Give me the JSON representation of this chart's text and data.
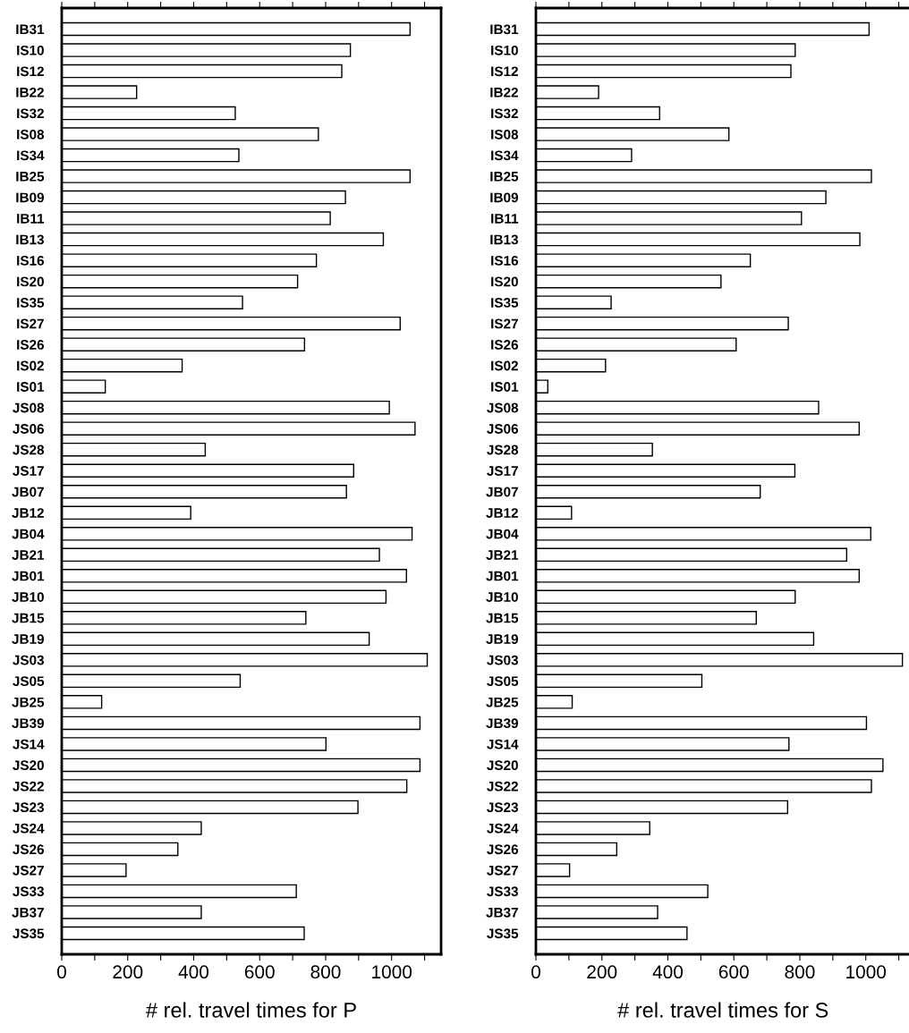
{
  "chart_data": [
    {
      "type": "bar",
      "orientation": "horizontal",
      "xlabel": "# rel. travel times for P",
      "categories": [
        "IB31",
        "IS10",
        "IS12",
        "IB22",
        "IS32",
        "IS08",
        "IS34",
        "IB25",
        "IB09",
        "IB11",
        "IB13",
        "IS16",
        "IS20",
        "IS35",
        "IS27",
        "IS26",
        "IS02",
        "IS01",
        "JS08",
        "JS06",
        "JS28",
        "JS17",
        "JB07",
        "JB12",
        "JB04",
        "JB21",
        "JB01",
        "JB10",
        "JB15",
        "JB19",
        "JS03",
        "JS05",
        "JB25",
        "JB39",
        "JS14",
        "JS20",
        "JS22",
        "JS23",
        "JS24",
        "JS26",
        "JS27",
        "JS33",
        "JB37",
        "JS35"
      ],
      "values": [
        1056,
        875,
        849,
        227,
        526,
        778,
        537,
        1056,
        860,
        814,
        975,
        772,
        715,
        548,
        1026,
        736,
        365,
        132,
        993,
        1071,
        435,
        885,
        863,
        391,
        1062,
        963,
        1045,
        983,
        740,
        932,
        1108,
        541,
        121,
        1086,
        801,
        1086,
        1046,
        898,
        423,
        352,
        195,
        711,
        423,
        735
      ],
      "color": "#ffffff",
      "xlim": [
        0,
        1150
      ],
      "xticks": [
        0,
        {
          "value": 100,
          "label": null
        },
        200,
        {
          "value": 300,
          "label": null
        },
        400,
        {
          "value": 500,
          "label": null
        },
        600,
        {
          "value": 700,
          "label": null
        },
        800,
        {
          "value": 900,
          "label": null
        },
        1000,
        {
          "value": 1100,
          "label": null
        }
      ],
      "grid": false,
      "legend": false
    },
    {
      "type": "bar",
      "orientation": "horizontal",
      "xlabel": "# rel. travel times for S",
      "categories": [
        "IB31",
        "IS10",
        "IS12",
        "IB22",
        "IS32",
        "IS08",
        "IS34",
        "IB25",
        "IB09",
        "IB11",
        "IB13",
        "IS16",
        "IS20",
        "IS35",
        "IS27",
        "IS26",
        "IS02",
        "IS01",
        "JS08",
        "JS06",
        "JS28",
        "JS17",
        "JB07",
        "JB12",
        "JB04",
        "JB21",
        "JB01",
        "JB10",
        "JB15",
        "JB19",
        "JS03",
        "JS05",
        "JB25",
        "JB39",
        "JS14",
        "JS20",
        "JS22",
        "JS23",
        "JS24",
        "JS26",
        "JS27",
        "JS33",
        "JB37",
        "JS35"
      ],
      "values": [
        1010,
        786,
        773,
        190,
        375,
        585,
        290,
        1017,
        879,
        805,
        982,
        650,
        561,
        228,
        765,
        607,
        211,
        36,
        857,
        980,
        353,
        785,
        680,
        108,
        1015,
        942,
        980,
        786,
        668,
        842,
        1111,
        503,
        110,
        1002,
        767,
        1052,
        1017,
        763,
        345,
        245,
        102,
        521,
        369,
        458
      ],
      "color": "#ffffff",
      "xlim": [
        0,
        1135
      ],
      "xticks": [
        0,
        {
          "value": 100,
          "label": null
        },
        200,
        {
          "value": 300,
          "label": null
        },
        400,
        {
          "value": 500,
          "label": null
        },
        600,
        {
          "value": 700,
          "label": null
        },
        800,
        {
          "value": 900,
          "label": null
        },
        1000,
        {
          "value": 1100,
          "label": null
        }
      ],
      "grid": false,
      "legend": false
    }
  ]
}
